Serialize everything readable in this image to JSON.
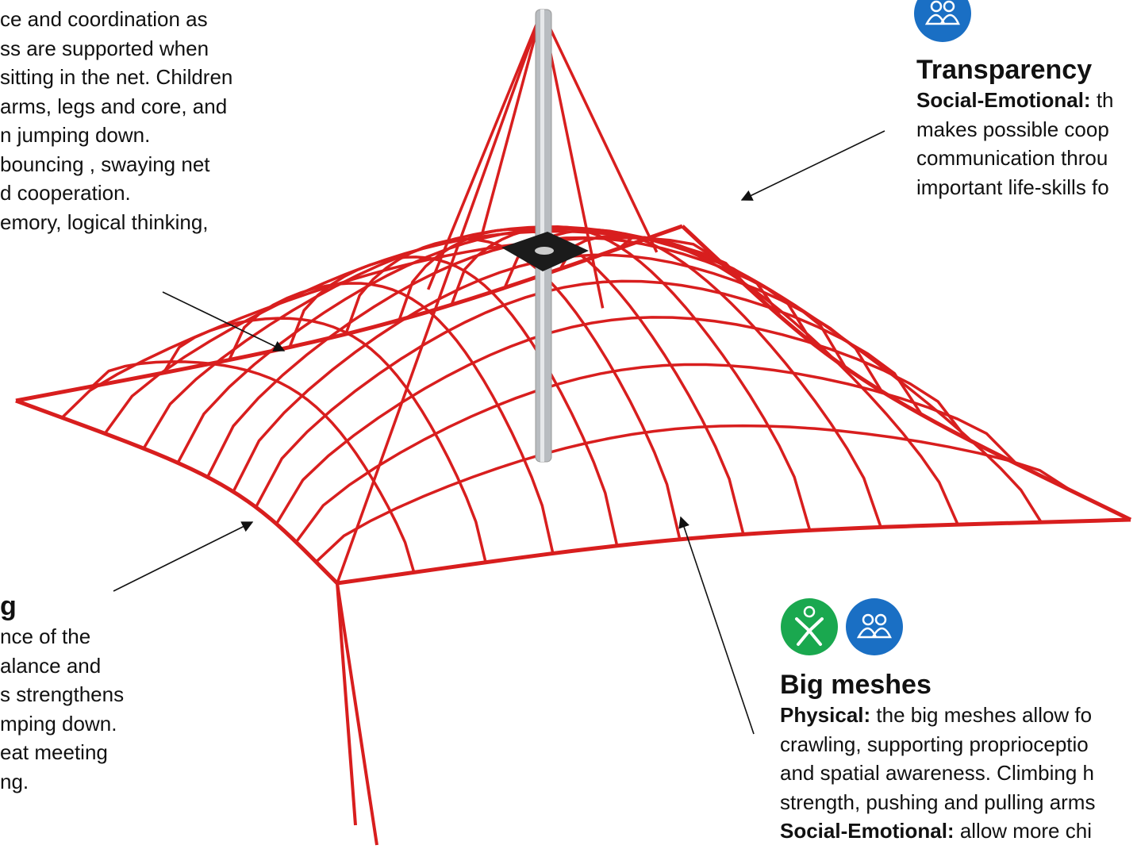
{
  "top_left": {
    "lines": [
      "ce and coordination as",
      "ss are supported when",
      "sitting in the net. Children",
      "arms, legs and core, and",
      "n jumping down.",
      "bouncing , swaying net",
      "d cooperation.",
      "emory, logical thinking,"
    ]
  },
  "bottom_left": {
    "heading": "g",
    "lines": [
      "nce of the",
      "alance and",
      "s strengthens",
      "mping down.",
      "eat meeting",
      "ng."
    ]
  },
  "transparency": {
    "heading": "Transparency",
    "lines": [
      {
        "label": "Social-Emotional:",
        "text": "th"
      },
      "makes possible coop",
      "communication throu",
      "important life-skills fo"
    ]
  },
  "big_meshes": {
    "heading": "Big meshes",
    "lines": [
      {
        "label": "Physical:",
        "text": "the big meshes allow fo"
      },
      "crawling, supporting proprioceptio",
      "and spatial awareness. Climbing h",
      "strength, pushing and pulling arms",
      {
        "label": "Social-Emotional:",
        "text": "allow more chi"
      }
    ]
  }
}
